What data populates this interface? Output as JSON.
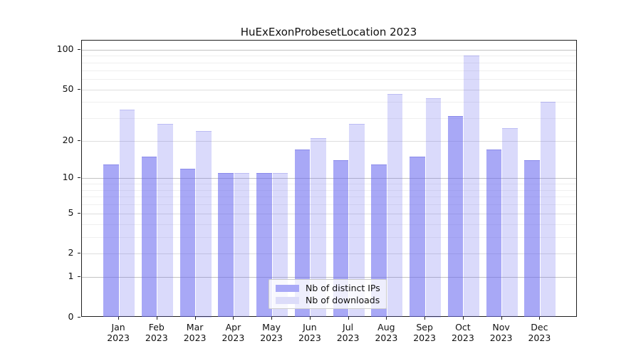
{
  "page": {
    "background": "#ffffff"
  },
  "chart_data": {
    "type": "bar",
    "title": "HuExExonProbesetLocation 2023",
    "categories": [
      "Jan",
      "Feb",
      "Mar",
      "Apr",
      "May",
      "Jun",
      "Jul",
      "Aug",
      "Sep",
      "Oct",
      "Nov",
      "Dec"
    ],
    "category_sublabel": "2023",
    "series": [
      {
        "name": "Nb of distinct IPs",
        "color": "#a9a9f7",
        "fill": "rgba(102,102,240,0.57)",
        "values": [
          13,
          15,
          12,
          11,
          11,
          17,
          14,
          13,
          15,
          31,
          17,
          14
        ]
      },
      {
        "name": "Nb of downloads",
        "color": "#dcdcf9",
        "fill": "rgba(102,102,240,0.24)",
        "values": [
          35,
          27,
          24,
          11,
          11,
          21,
          27,
          46,
          43,
          90,
          25,
          40
        ]
      }
    ],
    "xlabel": "",
    "ylabel": "",
    "y_scale": "log1p",
    "y_ticks": [
      0,
      1,
      2,
      5,
      10,
      20,
      50,
      100
    ],
    "y_minor_ticks": [
      3,
      4,
      6,
      7,
      8,
      9,
      30,
      40,
      60,
      70,
      80,
      90
    ],
    "ylim": [
      0,
      117.3
    ],
    "grid": "horizontal",
    "legend_position": "bottom-center"
  }
}
